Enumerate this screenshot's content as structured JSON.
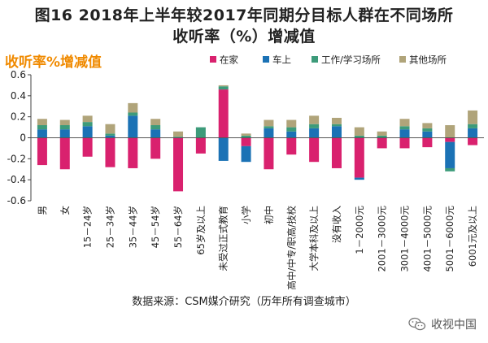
{
  "chart_data": {
    "type": "bar",
    "stacked": true,
    "title": "图16 2018年上半年较2017年同期分目标人群在不同场所收听率（%）增减值",
    "title_line1": "图16 2018年上半年较2017年同期分目标人群在不同场所",
    "title_line2": "收听率（%）增减值",
    "ylabel": "收听率%增减值",
    "ylim": [
      -0.6,
      0.6
    ],
    "yticks": [
      -0.6,
      -0.4,
      -0.2,
      0,
      0.2,
      0.4,
      0.6
    ],
    "ytick_labels": [
      "-0.6",
      "-0.4",
      "-0.2",
      "0",
      "0.2",
      "0.4",
      "0.6"
    ],
    "legend_position": "top",
    "categories": [
      "男",
      "女",
      "15－24岁",
      "25－34岁",
      "35－44岁",
      "45－54岁",
      "55－64岁",
      "65岁及以上",
      "未受过正式教育",
      "小学",
      "初中",
      "高中/中专/职高/技校",
      "大学本科及以上",
      "没有收入",
      "1－2000元",
      "2001－3000元",
      "3001－4000元",
      "4001－5000元",
      "5001－6000元",
      "6001元及以上"
    ],
    "series": [
      {
        "name": "在家",
        "color": "#d9216e",
        "values": [
          -0.26,
          -0.3,
          -0.18,
          -0.28,
          -0.29,
          -0.2,
          -0.51,
          -0.15,
          0.46,
          -0.08,
          -0.3,
          -0.16,
          -0.23,
          -0.29,
          -0.38,
          -0.1,
          -0.1,
          -0.09,
          -0.04,
          -0.07
        ]
      },
      {
        "name": "车上",
        "color": "#1b72b5",
        "values": [
          0.08,
          0.08,
          0.11,
          0.02,
          0.21,
          0.08,
          0.0,
          0.0,
          -0.22,
          -0.15,
          0.09,
          0.06,
          0.09,
          0.11,
          -0.02,
          0.0,
          0.08,
          0.06,
          -0.25,
          0.09
        ]
      },
      {
        "name": "工作/学习场所",
        "color": "#3d9b7a",
        "values": [
          0.04,
          0.04,
          0.04,
          0.02,
          0.03,
          0.04,
          0.01,
          0.1,
          0.03,
          0.02,
          0.02,
          0.04,
          0.04,
          0.02,
          0.02,
          0.02,
          0.03,
          0.03,
          -0.03,
          0.04
        ]
      },
      {
        "name": "其他场所",
        "color": "#b0a47a",
        "values": [
          0.06,
          0.05,
          0.06,
          0.09,
          0.09,
          0.06,
          0.05,
          0.0,
          0.01,
          0.02,
          0.06,
          0.07,
          0.08,
          0.06,
          0.08,
          0.04,
          0.07,
          0.05,
          0.12,
          0.13
        ]
      }
    ]
  },
  "source_note": "数据来源：CSM媒介研究（历年所有调查城市）",
  "watermark": "收视中国",
  "watermark_icon": "wechat-icon"
}
